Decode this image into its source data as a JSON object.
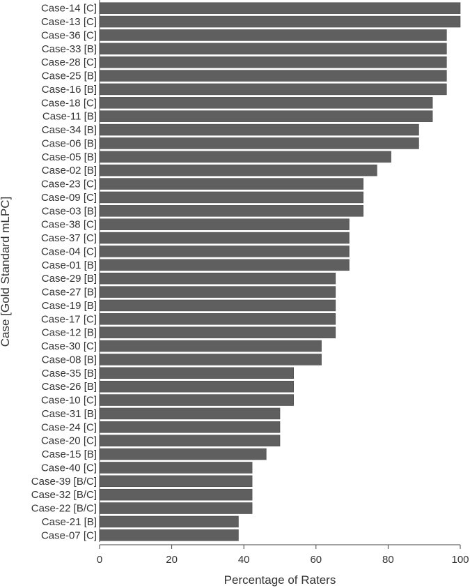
{
  "chart_data": {
    "type": "bar",
    "orientation": "horizontal",
    "xlabel": "Percentage of Raters",
    "ylabel": "Case [Gold Standard mLPC]",
    "xlim": [
      0,
      100
    ],
    "xticks": [
      0,
      20,
      40,
      60,
      80,
      100
    ],
    "grid": false,
    "bar_color": "#5f5f5f",
    "categories": [
      "Case-14 [C]",
      "Case-13 [C]",
      "Case-36 [C]",
      "Case-33 [B]",
      "Case-28 [C]",
      "Case-25 [B]",
      "Case-16 [B]",
      "Case-18 [C]",
      "Case-11 [B]",
      "Case-34 [B]",
      "Case-06 [B]",
      "Case-05 [B]",
      "Case-02 [B]",
      "Case-23 [C]",
      "Case-09 [C]",
      "Case-03 [B]",
      "Case-38 [C]",
      "Case-37 [C]",
      "Case-04 [C]",
      "Case-01 [B]",
      "Case-29 [B]",
      "Case-27 [B]",
      "Case-19 [B]",
      "Case-17 [C]",
      "Case-12 [B]",
      "Case-30 [C]",
      "Case-08 [B]",
      "Case-35 [B]",
      "Case-26 [B]",
      "Case-10 [C]",
      "Case-31 [B]",
      "Case-24 [C]",
      "Case-20 [C]",
      "Case-15 [B]",
      "Case-40 [C]",
      "Case-39 [B/C]",
      "Case-32 [B/C]",
      "Case-22 [B/C]",
      "Case-21 [B]",
      "Case-07 [C]"
    ],
    "values": [
      100,
      100,
      96.2,
      96.2,
      96.2,
      96.2,
      96.2,
      92.3,
      92.3,
      88.5,
      88.5,
      80.8,
      76.9,
      73.1,
      73.1,
      73.1,
      69.2,
      69.2,
      69.2,
      69.2,
      65.4,
      65.4,
      65.4,
      65.4,
      65.4,
      61.5,
      61.5,
      53.8,
      53.8,
      53.8,
      50.0,
      50.0,
      50.0,
      46.2,
      42.3,
      42.3,
      42.3,
      42.3,
      38.5,
      38.5
    ]
  }
}
